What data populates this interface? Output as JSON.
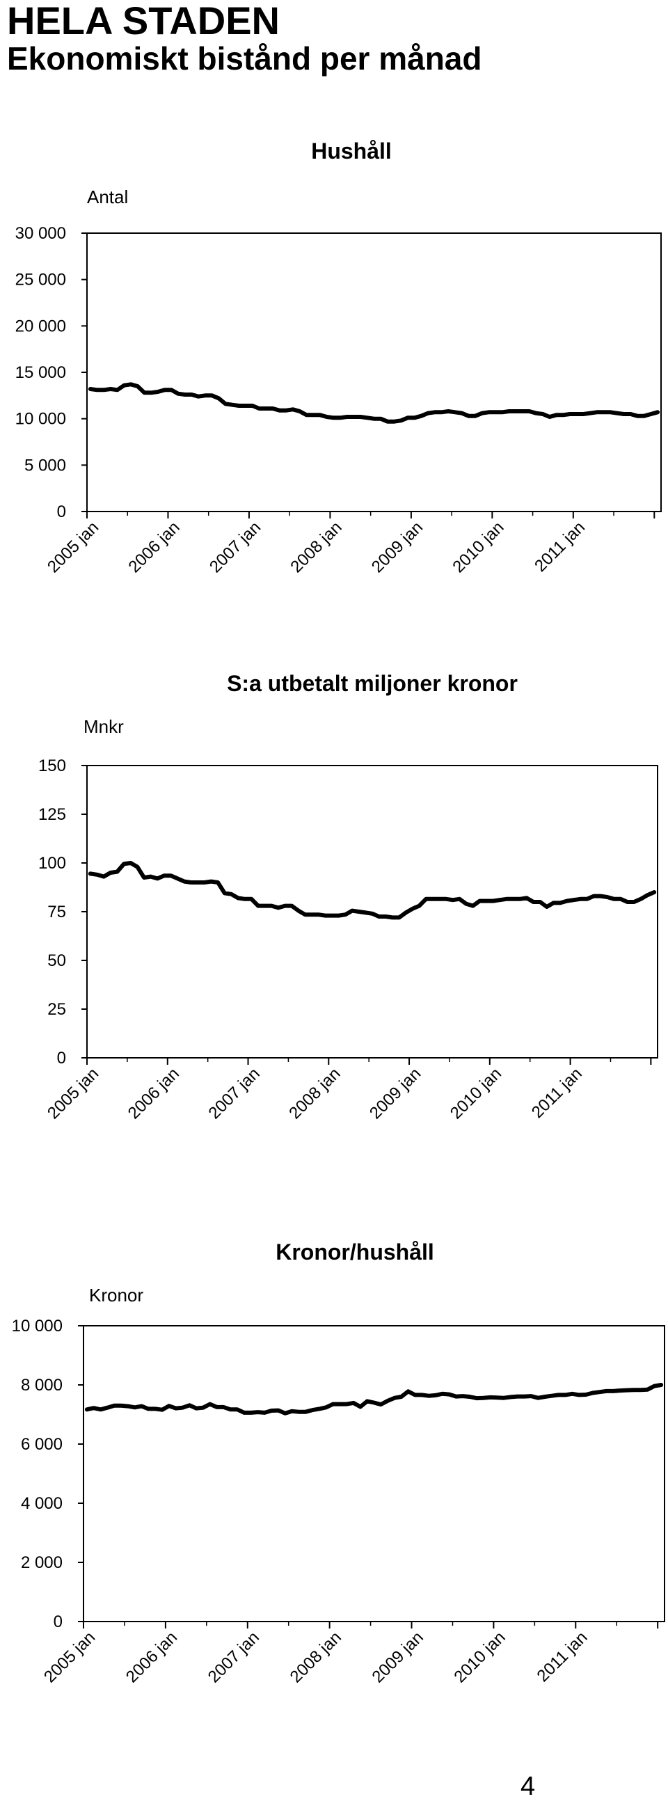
{
  "page": {
    "title": "HELA STADEN",
    "subtitle": "Ekonomiskt bistånd per månad",
    "page_number": "4"
  },
  "chart_data": [
    {
      "type": "line",
      "title": "Hushåll",
      "unit_label": "Antal",
      "ylim": [
        0,
        30000
      ],
      "y_ticks": [
        0,
        5000,
        10000,
        15000,
        20000,
        25000,
        30000
      ],
      "y_tick_labels": [
        "0",
        "5 000",
        "10 000",
        "15 000",
        "20 000",
        "25 000",
        "30 000"
      ],
      "x_tick_labels": [
        "2005 jan",
        "2006 jan",
        "2007 jan",
        "2008 jan",
        "2009 jan",
        "2010 jan",
        "2011 jan"
      ],
      "grid": false,
      "series": [
        {
          "values": [
            13200,
            13100,
            13100,
            13200,
            13100,
            13600,
            13700,
            13500,
            12800,
            12800,
            12900,
            13100,
            13100,
            12700,
            12600,
            12600,
            12400,
            12500,
            12500,
            12200,
            11600,
            11500,
            11400,
            11400,
            11400,
            11100,
            11100,
            11100,
            10900,
            10900,
            11000,
            10800,
            10400,
            10400,
            10400,
            10200,
            10100,
            10100,
            10200,
            10200,
            10200,
            10100,
            10000,
            10000,
            9700,
            9700,
            9800,
            10100,
            10100,
            10300,
            10600,
            10700,
            10700,
            10800,
            10700,
            10600,
            10300,
            10300,
            10600,
            10700,
            10700,
            10700,
            10800,
            10800,
            10800,
            10800,
            10600,
            10500,
            10200,
            10400,
            10400,
            10500,
            10500,
            10500,
            10600,
            10700,
            10700,
            10700,
            10600,
            10500,
            10500,
            10300,
            10300,
            10500,
            10700
          ]
        }
      ]
    },
    {
      "type": "line",
      "title": "S:a utbetalt miljoner kronor",
      "unit_label": "Mnkr",
      "ylim": [
        0,
        150
      ],
      "y_ticks": [
        0,
        25,
        50,
        75,
        100,
        125,
        150
      ],
      "y_tick_labels": [
        "0",
        "25",
        "50",
        "75",
        "100",
        "125",
        "150"
      ],
      "x_tick_labels": [
        "2005 jan",
        "2006 jan",
        "2007 jan",
        "2008 jan",
        "2009 jan",
        "2010 jan",
        "2011 jan"
      ],
      "grid": false,
      "series": [
        {
          "values": [
            94.5,
            94,
            93,
            95,
            95.5,
            99.5,
            100,
            98,
            92.5,
            93,
            92,
            93.5,
            93.5,
            92,
            90.5,
            90,
            90,
            90,
            90.5,
            90,
            84.5,
            84,
            82,
            81.5,
            81.5,
            78,
            78,
            78,
            77,
            78,
            78,
            75.5,
            73.5,
            73.5,
            73.5,
            73,
            73,
            73,
            73.5,
            75.5,
            75,
            74.5,
            74,
            72.5,
            72.5,
            72,
            72,
            74.5,
            76.5,
            78,
            81.5,
            81.5,
            81.5,
            81.5,
            81,
            81.5,
            79,
            78,
            80.5,
            80.5,
            80.5,
            81,
            81.5,
            81.5,
            81.5,
            82,
            80,
            80,
            77.5,
            79.5,
            79.5,
            80.5,
            81,
            81.5,
            81.5,
            83,
            83,
            82.5,
            81.5,
            81.5,
            80,
            80,
            81.5,
            83.5,
            85
          ]
        }
      ]
    },
    {
      "type": "line",
      "title": "Kronor/hushåll",
      "unit_label": "Kronor",
      "ylim": [
        0,
        10000
      ],
      "y_ticks": [
        0,
        2000,
        4000,
        6000,
        8000,
        10000
      ],
      "y_tick_labels": [
        "0",
        "2 000",
        "4 000",
        "6 000",
        "8 000",
        "10 000"
      ],
      "x_tick_labels": [
        "2005 jan",
        "2006 jan",
        "2007 jan",
        "2008 jan",
        "2009 jan",
        "2010 jan",
        "2011 jan"
      ],
      "grid": false,
      "series": [
        {
          "values": [
            7170,
            7220,
            7170,
            7230,
            7300,
            7300,
            7280,
            7240,
            7280,
            7190,
            7190,
            7160,
            7290,
            7210,
            7230,
            7310,
            7210,
            7230,
            7350,
            7250,
            7250,
            7170,
            7170,
            7060,
            7060,
            7080,
            7060,
            7130,
            7140,
            7040,
            7110,
            7090,
            7090,
            7150,
            7190,
            7240,
            7350,
            7350,
            7350,
            7390,
            7260,
            7450,
            7400,
            7340,
            7460,
            7560,
            7600,
            7780,
            7660,
            7660,
            7630,
            7650,
            7700,
            7680,
            7610,
            7620,
            7600,
            7550,
            7560,
            7580,
            7570,
            7560,
            7590,
            7610,
            7610,
            7620,
            7560,
            7600,
            7630,
            7660,
            7660,
            7700,
            7660,
            7670,
            7730,
            7760,
            7790,
            7790,
            7810,
            7820,
            7830,
            7830,
            7840,
            7960,
            8000
          ]
        }
      ]
    }
  ]
}
